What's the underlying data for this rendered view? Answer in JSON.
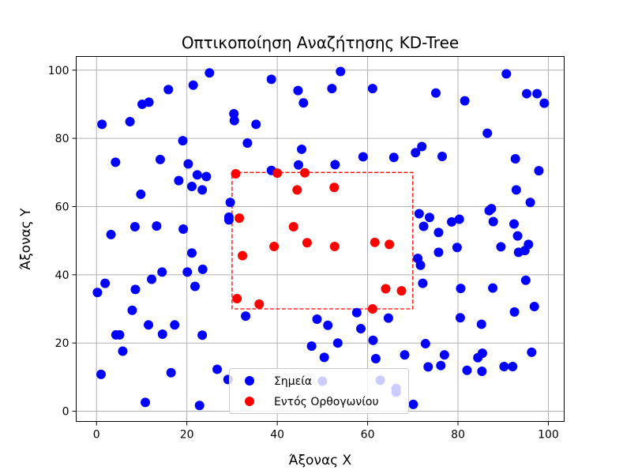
{
  "chart_data": {
    "type": "scatter",
    "title": "Οπτικοποίηση Αναζήτησης KD-Tree",
    "xlabel": "Άξονας X",
    "ylabel": "Άξονας Y",
    "xlim": [
      -4.5,
      103.5
    ],
    "ylim": [
      -3,
      104
    ],
    "xticks": [
      0,
      20,
      40,
      60,
      80,
      100
    ],
    "yticks": [
      0,
      20,
      40,
      60,
      80,
      100
    ],
    "xtick_labels": [
      "0",
      "20",
      "40",
      "60",
      "80",
      "100"
    ],
    "ytick_labels": [
      "0",
      "20",
      "40",
      "60",
      "80",
      "100"
    ],
    "grid": true,
    "legend_placement": "bottom-center",
    "rectangle": {
      "x_min": 30,
      "x_max": 70,
      "y_min": 30,
      "y_max": 70,
      "color": "#ff0000",
      "style": "dashed"
    },
    "series": [
      {
        "name": "Σημεία",
        "color": "#0000ff",
        "points": [
          [
            0.2,
            34.8
          ],
          [
            1.0,
            10.8
          ],
          [
            1.2,
            84.1
          ],
          [
            1.9,
            37.5
          ],
          [
            3.2,
            51.8
          ],
          [
            4.2,
            73.0
          ],
          [
            4.3,
            22.4
          ],
          [
            5.1,
            22.4
          ],
          [
            5.8,
            17.6
          ],
          [
            7.4,
            84.9
          ],
          [
            7.9,
            29.6
          ],
          [
            8.5,
            54.1
          ],
          [
            8.6,
            35.7
          ],
          [
            9.8,
            63.6
          ],
          [
            10.1,
            90.0
          ],
          [
            10.8,
            2.6
          ],
          [
            11.5,
            25.3
          ],
          [
            11.6,
            90.6
          ],
          [
            12.2,
            38.7
          ],
          [
            13.3,
            54.3
          ],
          [
            14.1,
            73.8
          ],
          [
            14.5,
            40.8
          ],
          [
            14.6,
            22.6
          ],
          [
            15.9,
            94.3
          ],
          [
            16.5,
            11.3
          ],
          [
            17.3,
            25.3
          ],
          [
            18.2,
            67.6
          ],
          [
            19.1,
            79.3
          ],
          [
            19.2,
            53.4
          ],
          [
            20.1,
            40.8
          ],
          [
            20.3,
            72.5
          ],
          [
            21.1,
            65.9
          ],
          [
            21.1,
            46.4
          ],
          [
            21.4,
            95.6
          ],
          [
            21.8,
            36.6
          ],
          [
            22.3,
            69.3
          ],
          [
            22.8,
            1.7
          ],
          [
            23.4,
            64.9
          ],
          [
            23.4,
            22.3
          ],
          [
            23.5,
            41.6
          ],
          [
            24.3,
            68.8
          ],
          [
            25.0,
            99.2
          ],
          [
            26.7,
            12.3
          ],
          [
            29.1,
            9.3
          ],
          [
            29.3,
            56.1
          ],
          [
            29.3,
            56.9
          ],
          [
            29.6,
            61.2
          ],
          [
            30.4,
            87.2
          ],
          [
            30.5,
            85.2
          ],
          [
            33.0,
            27.9
          ],
          [
            33.4,
            78.6
          ],
          [
            35.3,
            84.1
          ],
          [
            38.7,
            97.3
          ],
          [
            38.7,
            70.6
          ],
          [
            44.6,
            94.0
          ],
          [
            44.7,
            72.2
          ],
          [
            45.4,
            76.8
          ],
          [
            45.8,
            90.4
          ],
          [
            47.6,
            19.1
          ],
          [
            48.8,
            27.0
          ],
          [
            50.0,
            8.8
          ],
          [
            50.4,
            15.8
          ],
          [
            51.2,
            25.2
          ],
          [
            52.1,
            94.6
          ],
          [
            52.8,
            72.3
          ],
          [
            53.4,
            20.0
          ],
          [
            54.0,
            99.6
          ],
          [
            57.6,
            28.9
          ],
          [
            58.5,
            24.2
          ],
          [
            59.0,
            74.6
          ],
          [
            61.1,
            94.6
          ],
          [
            61.2,
            20.8
          ],
          [
            61.8,
            15.4
          ],
          [
            62.8,
            9.1
          ],
          [
            64.6,
            27.3
          ],
          [
            65.8,
            74.4
          ],
          [
            66.3,
            6.7
          ],
          [
            66.3,
            5.6
          ],
          [
            68.2,
            16.5
          ],
          [
            70.1,
            2.0
          ],
          [
            70.6,
            75.8
          ],
          [
            71.1,
            44.8
          ],
          [
            71.4,
            57.9
          ],
          [
            71.7,
            42.8
          ],
          [
            72.0,
            77.6
          ],
          [
            72.2,
            37.5
          ],
          [
            72.4,
            54.2
          ],
          [
            72.8,
            19.8
          ],
          [
            73.4,
            13.0
          ],
          [
            73.7,
            56.8
          ],
          [
            75.1,
            93.3
          ],
          [
            75.7,
            46.6
          ],
          [
            75.7,
            52.4
          ],
          [
            76.2,
            13.4
          ],
          [
            76.5,
            74.7
          ],
          [
            77.0,
            16.5
          ],
          [
            78.6,
            55.5
          ],
          [
            79.8,
            48.0
          ],
          [
            80.3,
            56.3
          ],
          [
            80.5,
            27.4
          ],
          [
            80.6,
            36.0
          ],
          [
            81.5,
            91.0
          ],
          [
            82.0,
            12.0
          ],
          [
            84.4,
            15.7
          ],
          [
            85.2,
            25.5
          ],
          [
            85.3,
            11.7
          ],
          [
            85.4,
            17.0
          ],
          [
            86.5,
            81.5
          ],
          [
            86.9,
            58.8
          ],
          [
            87.4,
            59.4
          ],
          [
            87.7,
            36.1
          ],
          [
            87.8,
            55.6
          ],
          [
            89.5,
            48.2
          ],
          [
            90.2,
            13.1
          ],
          [
            90.7,
            98.9
          ],
          [
            92.1,
            13.1
          ],
          [
            92.4,
            54.9
          ],
          [
            92.5,
            29.1
          ],
          [
            92.7,
            74.0
          ],
          [
            92.9,
            64.9
          ],
          [
            93.2,
            51.4
          ],
          [
            93.4,
            46.6
          ],
          [
            94.8,
            47.1
          ],
          [
            95.0,
            38.4
          ],
          [
            95.2,
            93.1
          ],
          [
            95.6,
            48.9
          ],
          [
            96.0,
            61.2
          ],
          [
            96.3,
            17.3
          ],
          [
            96.9,
            30.7
          ],
          [
            97.5,
            93.1
          ],
          [
            97.9,
            70.5
          ],
          [
            99.1,
            90.3
          ]
        ]
      },
      {
        "name": "Εντός Ορθογωνίου",
        "color": "#ff0000",
        "points": [
          [
            30.8,
            69.6
          ],
          [
            31.1,
            33.0
          ],
          [
            31.6,
            56.6
          ],
          [
            32.3,
            45.6
          ],
          [
            36.0,
            31.4
          ],
          [
            39.3,
            48.3
          ],
          [
            40.0,
            69.8
          ],
          [
            43.6,
            54.1
          ],
          [
            44.4,
            64.9
          ],
          [
            46.1,
            69.9
          ],
          [
            46.6,
            49.4
          ],
          [
            52.6,
            65.6
          ],
          [
            52.7,
            48.3
          ],
          [
            61.1,
            30.0
          ],
          [
            61.6,
            49.5
          ],
          [
            64.0,
            35.9
          ],
          [
            64.8,
            48.9
          ],
          [
            67.5,
            35.3
          ]
        ]
      }
    ]
  }
}
